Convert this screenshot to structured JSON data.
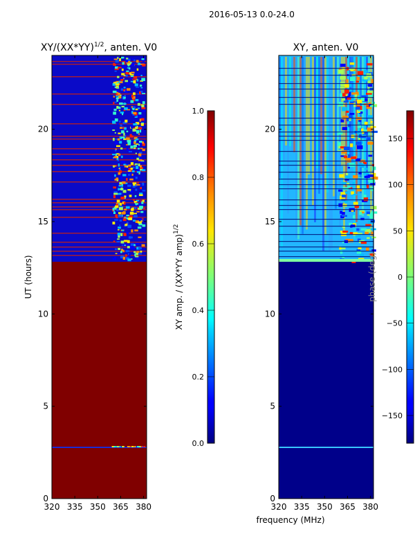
{
  "suptitle": "2016-05-13 0.0-24.0",
  "chart_data": [
    {
      "type": "heatmap",
      "title_main": "XY/(XX*YY)",
      "title_sup": "1/2",
      "title_rest": ", anten. V0",
      "ylabel": "UT (hours)",
      "xlabel": "",
      "xlim": [
        320,
        382
      ],
      "ylim": [
        0,
        24
      ],
      "xticks": [
        320,
        335,
        350,
        365,
        380
      ],
      "yticks": [
        0,
        5,
        10,
        15,
        20
      ],
      "colorbar": {
        "label_main": "XY amp. / (XX*YY amp)",
        "label_sup": "1/2",
        "range": [
          0.0,
          1.0
        ],
        "ticks": [
          "0.0",
          "0.2",
          "0.4",
          "0.6",
          "0.8",
          "1.0"
        ]
      }
    },
    {
      "type": "heatmap",
      "title_main": "XY, anten. V0",
      "ylabel": "",
      "xlabel": "frequency (MHz)",
      "xlim": [
        320,
        382
      ],
      "ylim": [
        0,
        24
      ],
      "xticks": [
        320,
        335,
        350,
        365,
        380
      ],
      "yticks": [
        0,
        5,
        10,
        15,
        20
      ],
      "colorbar": {
        "label_main": "phase (deg)",
        "range": [
          -180,
          180
        ],
        "ticks": [
          "150",
          "100",
          "50",
          "0",
          "−50",
          "−100",
          "−150"
        ]
      }
    }
  ]
}
